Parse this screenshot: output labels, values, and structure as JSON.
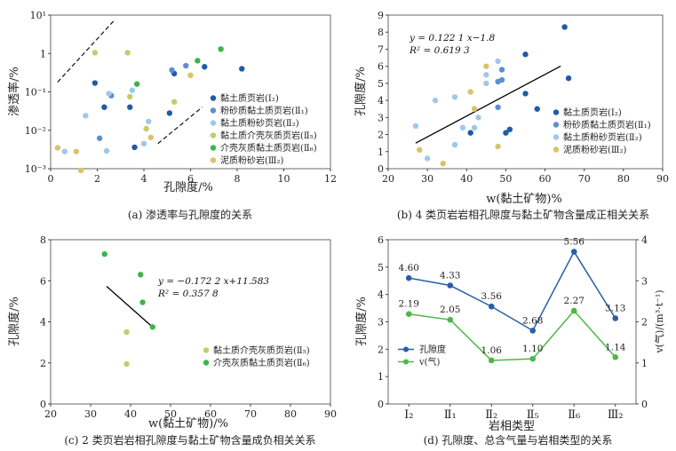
{
  "colors": {
    "dark_blue": "#1f5ba6",
    "mid_blue": "#5d8fcf",
    "light_blue": "#9ec8ec",
    "olive": "#c9c96a",
    "green": "#3bb54a",
    "yellow": "#d8c36a",
    "line_blue": "#2a5ea8",
    "line_green": "#4cb848"
  },
  "chart_data": [
    {
      "type": "scatter",
      "caption": "(a) 渗透率与孔隙度的关系",
      "xlabel": "孔隙度/%",
      "ylabel": "渗透率/%",
      "xlim": [
        0,
        12
      ],
      "ylim_log": [
        0.001,
        10
      ],
      "yscale": "log",
      "x_ticks": [
        "0",
        "2",
        "4",
        "6",
        "8",
        "10",
        "12"
      ],
      "y_ticks": [
        "10⁻³",
        "10⁻²",
        "10⁻¹",
        "1",
        "10¹"
      ],
      "legend": {
        "placement": "middle-right"
      },
      "series": [
        {
          "name": "黏土质页岩(Ⅰ₂)",
          "color_key": "dark_blue",
          "points": [
            [
              1.9,
              0.17
            ],
            [
              2.3,
              0.04
            ],
            [
              3.4,
              0.04
            ],
            [
              5.3,
              0.3
            ],
            [
              6.6,
              0.45
            ],
            [
              8.2,
              0.4
            ],
            [
              3.6,
              0.0036
            ],
            [
              5.1,
              0.028
            ]
          ]
        },
        {
          "name": "粉砂质黏土质页岩(Ⅱ₁)",
          "color_key": "mid_blue",
          "points": [
            [
              2.1,
              0.0062
            ],
            [
              5.2,
              0.37
            ],
            [
              5.8,
              0.48
            ],
            [
              2.6,
              0.08
            ]
          ]
        },
        {
          "name": "黏土质粉砂页岩(Ⅱ₂)",
          "color_key": "light_blue",
          "points": [
            [
              0.6,
              0.0028
            ],
            [
              1.5,
              0.024
            ],
            [
              2.4,
              0.0029
            ],
            [
              2.5,
              0.09
            ],
            [
              4.0,
              0.0045
            ],
            [
              4.2,
              0.017
            ],
            [
              3.5,
              0.11
            ]
          ]
        },
        {
          "name": "黏土质介壳灰质页岩(Ⅱ₅)",
          "color_key": "olive",
          "points": [
            [
              1.9,
              1.05
            ],
            [
              3.3,
              1.05
            ],
            [
              3.4,
              0.075
            ],
            [
              4.1,
              0.011
            ],
            [
              5.3,
              0.055
            ]
          ]
        },
        {
          "name": "介壳灰质黏土质页岩(Ⅱ₆)",
          "color_key": "green",
          "points": [
            [
              3.7,
              0.16
            ],
            [
              6.3,
              0.65
            ],
            [
              7.3,
              1.3
            ]
          ]
        },
        {
          "name": "泥质粉砂岩(Ⅲ₂)",
          "color_key": "yellow",
          "points": [
            [
              0.3,
              0.0035
            ],
            [
              1.1,
              0.0028
            ],
            [
              1.3,
              0.0009
            ],
            [
              4.3,
              0.0065
            ],
            [
              6.0,
              0.27
            ]
          ]
        }
      ],
      "guide_lines": [
        {
          "style": "dashed",
          "from": [
            0.3,
            0.18
          ],
          "to": [
            2.7,
            7.0
          ]
        },
        {
          "style": "dashed",
          "from": [
            4.6,
            0.0045
          ],
          "to": [
            6.5,
            0.04
          ]
        }
      ]
    },
    {
      "type": "scatter",
      "caption": "(b) 4 类页岩岩相孔隙度与黏土矿物含量成正相关关系",
      "xlabel": "w(黏土矿物)%",
      "ylabel": "孔隙度/%",
      "xlim": [
        20,
        90
      ],
      "ylim": [
        0,
        9
      ],
      "x_ticks": [
        "20",
        "30",
        "40",
        "50",
        "60",
        "70",
        "80",
        "90"
      ],
      "y_ticks": [
        "0",
        "1",
        "2",
        "3",
        "4",
        "5",
        "6",
        "7",
        "8",
        "9"
      ],
      "equation": "y = 0.122 1 x−1.8",
      "r2": "R² = 0.619 3",
      "trendline": {
        "slope": 0.1221,
        "intercept": -1.8,
        "x_range": [
          27,
          64
        ]
      },
      "legend": {
        "placement": "bottom-right"
      },
      "series": [
        {
          "name": "黏土质页岩(Ⅰ₂)",
          "color_key": "dark_blue",
          "points": [
            [
              65,
              8.3
            ],
            [
              55,
              6.7
            ],
            [
              66,
              5.3
            ],
            [
              55,
              4.4
            ],
            [
              58,
              3.5
            ],
            [
              51,
              2.3
            ],
            [
              50,
              2.1
            ],
            [
              41,
              2.1
            ]
          ]
        },
        {
          "name": "粉砂质黏土质页岩(Ⅱ₁)",
          "color_key": "mid_blue",
          "points": [
            [
              49,
              5.8
            ],
            [
              49,
              5.2
            ],
            [
              48,
              5.1
            ],
            [
              48,
              3.6
            ]
          ]
        },
        {
          "name": "黏土质粉砂页岩(Ⅱ₂)",
          "color_key": "light_blue",
          "points": [
            [
              27,
              2.5
            ],
            [
              30,
              0.6
            ],
            [
              32,
              4.0
            ],
            [
              37,
              4.2
            ],
            [
              37,
              1.4
            ],
            [
              39,
              2.4
            ],
            [
              42,
              2.4
            ],
            [
              43,
              3.0
            ],
            [
              45,
              5.0
            ],
            [
              48,
              6.3
            ],
            [
              45,
              5.5
            ]
          ]
        },
        {
          "name": "泥质粉砂岩(Ⅲ₂)",
          "color_key": "yellow",
          "points": [
            [
              28,
              1.1
            ],
            [
              34,
              0.3
            ],
            [
              41,
              4.5
            ],
            [
              42,
              3.5
            ],
            [
              45,
              6.0
            ],
            [
              48,
              1.3
            ]
          ]
        }
      ]
    },
    {
      "type": "scatter",
      "caption": "(c) 2 类页岩岩相孔隙度与黏土矿物含量成负相关关系",
      "xlabel": "w(黏土矿物)/%",
      "ylabel": "孔隙度/%",
      "xlim": [
        20,
        90
      ],
      "ylim": [
        0,
        8
      ],
      "x_ticks": [
        "20",
        "30",
        "40",
        "50",
        "60",
        "70",
        "80",
        "90"
      ],
      "y_ticks": [
        "0",
        "2",
        "4",
        "6",
        "8"
      ],
      "equation": "y = −0.172 2 x+11.583",
      "r2": "R² = 0.357 8",
      "trendline": {
        "slope": -0.1722,
        "intercept": 11.583,
        "x_range": [
          34,
          45.5
        ]
      },
      "legend": {
        "placement": "bottom-right"
      },
      "series": [
        {
          "name": "黏土质介壳灰质页岩(Ⅱ₅)",
          "color_key": "olive",
          "points": [
            [
              39,
              3.5
            ],
            [
              39,
              1.95
            ]
          ]
        },
        {
          "name": "介壳灰质黏土质页岩(Ⅱ₆)",
          "color_key": "green",
          "points": [
            [
              33.5,
              7.3
            ],
            [
              42.5,
              6.3
            ],
            [
              43,
              4.95
            ],
            [
              45.5,
              3.75
            ]
          ]
        }
      ]
    },
    {
      "type": "line",
      "caption": "(d) 孔隙度、总含气量与岩相类型的关系",
      "xlabel": "岩相类型",
      "ylabel": "孔隙度/%",
      "ylabel_right": "v(气)/(m³·t⁻¹)",
      "categories": [
        "Ⅰ₂",
        "Ⅱ₁",
        "Ⅱ₂",
        "Ⅱ₅",
        "Ⅱ₆",
        "Ⅲ₂"
      ],
      "ylim": [
        0,
        6
      ],
      "ylim_right": [
        0,
        4
      ],
      "y_ticks": [
        "0",
        "1",
        "2",
        "3",
        "4",
        "5",
        "6"
      ],
      "y_ticks_right": [
        "0",
        "1",
        "2",
        "3",
        "4"
      ],
      "legend": {
        "placement": "bottom-left"
      },
      "series": [
        {
          "name": "孔隙度",
          "color_key": "line_blue",
          "axis": "left",
          "values": [
            4.6,
            4.33,
            3.56,
            2.68,
            5.56,
            3.13
          ],
          "labels": [
            "4.60",
            "4.33",
            "3.56",
            "2.68",
            "5.56",
            "3.13"
          ]
        },
        {
          "name": "v(气)",
          "color_key": "line_green",
          "axis": "right",
          "values": [
            2.19,
            2.05,
            1.06,
            1.1,
            2.27,
            1.14
          ],
          "labels": [
            "2.19",
            "2.05",
            "1.06",
            "1.10",
            "2.27",
            "1.14"
          ]
        }
      ]
    }
  ]
}
